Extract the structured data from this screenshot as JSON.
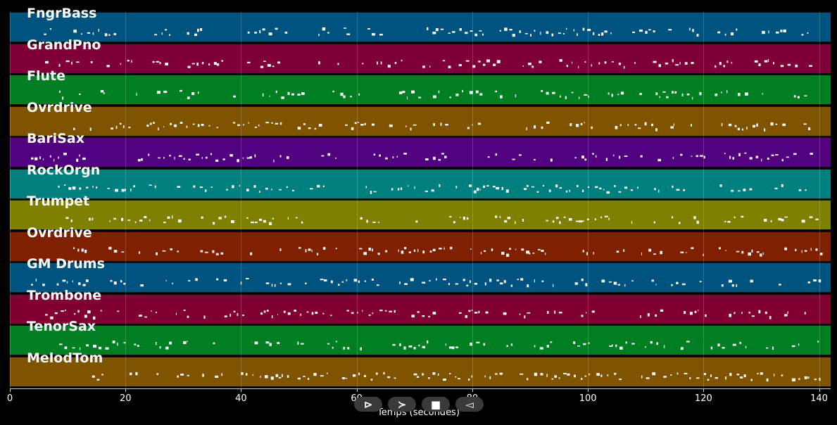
{
  "tracks": [
    {
      "name": "FngrBass",
      "color": "#00527f"
    },
    {
      "name": "GrandPno",
      "color": "#7f0037"
    },
    {
      "name": "Flute",
      "color": "#007f22"
    },
    {
      "name": "Ovrdrive",
      "color": "#7f5300"
    },
    {
      "name": "BariSax",
      "color": "#51007f"
    },
    {
      "name": "RockOrgn",
      "color": "#007f7f"
    },
    {
      "name": "Trumpet",
      "color": "#7f7f00"
    },
    {
      "name": "Ovrdrive",
      "color": "#7f2000"
    },
    {
      "name": "GM Drums",
      "color": "#00527f"
    },
    {
      "name": "Trombone",
      "color": "#7f0031"
    },
    {
      "name": "TenorSax",
      "color": "#007f22"
    },
    {
      "name": "MelodTom",
      "color": "#7f5300"
    }
  ],
  "x_axis": {
    "label": "Temps (secondes)",
    "ticks": [
      "0",
      "20",
      "40",
      "60",
      "80",
      "100",
      "120",
      "140"
    ]
  },
  "controls": {
    "play_icon": "⊳",
    "forward_icon": "≻",
    "stop_icon": "■",
    "back_icon": "◅"
  }
}
